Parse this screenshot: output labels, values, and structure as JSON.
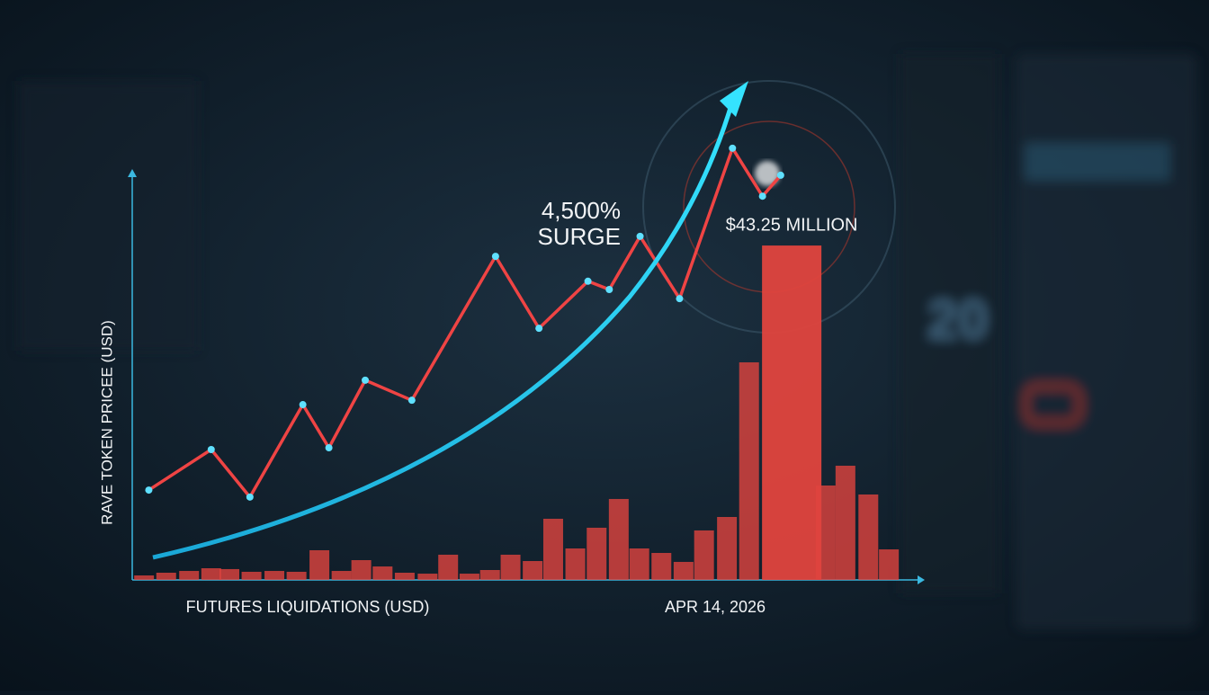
{
  "chart_data": {
    "type": "combo",
    "y_label": "RAVE TOKEN PRICEE (USD)",
    "x_label": "FUTURES LIQUIDATIONS (USD)",
    "annotations": [
      "4,500%",
      "SURGE",
      "APR 14, 2026"
    ],
    "xlim": [
      0,
      100
    ],
    "ylim": [
      0,
      100
    ],
    "y2lim": [
      0,
      56.4
    ],
    "series": [
      {
        "type": "line",
        "color": "#ef4444",
        "x": [
          2.1,
          10.0,
          14.9,
          21.6,
          24.9,
          29.5,
          35.4,
          46.0,
          51.5,
          57.7,
          60.4,
          64.3,
          69.3,
          76.0,
          79.8,
          82.1
        ],
        "values": [
          20.6,
          29.9,
          19.0,
          40.2,
          30.3,
          45.8,
          41.2,
          74.2,
          57.7,
          68.5,
          66.6,
          78.8,
          64.5,
          99.0,
          88.0,
          92.8
        ]
      },
      {
        "type": "bar",
        "axis": "y2",
        "color": "#e0443e",
        "x": [
          1.5,
          4.3,
          7.2,
          10.0,
          12.3,
          15.1,
          18.0,
          20.8,
          23.7,
          26.5,
          29.0,
          31.7,
          34.5,
          37.4,
          40.0,
          42.7,
          45.3,
          47.9,
          50.7,
          53.3,
          56.1,
          58.8,
          61.6,
          64.2,
          67.0,
          69.8,
          72.4,
          75.3,
          78.1,
          83.5,
          87.8,
          90.3,
          93.2,
          95.8
        ],
        "values": [
          0.58,
          0.93,
          1.16,
          1.51,
          1.4,
          1.05,
          1.16,
          1.05,
          3.84,
          1.16,
          2.56,
          1.74,
          0.93,
          0.81,
          3.26,
          0.81,
          1.28,
          3.26,
          2.44,
          7.91,
          4.07,
          6.75,
          10.47,
          4.07,
          3.49,
          2.33,
          6.4,
          8.14,
          28.14,
          43.25,
          12.21,
          14.77,
          11.05,
          3.95
        ],
        "value_labels": [
          null,
          null,
          null,
          null,
          null,
          null,
          null,
          null,
          null,
          null,
          null,
          null,
          null,
          null,
          null,
          null,
          null,
          null,
          null,
          null,
          null,
          null,
          null,
          null,
          null,
          null,
          null,
          null,
          null,
          "$43.25 MILLION",
          null,
          null,
          null,
          null
        ]
      }
    ]
  },
  "background": {
    "panel_text": "20"
  }
}
